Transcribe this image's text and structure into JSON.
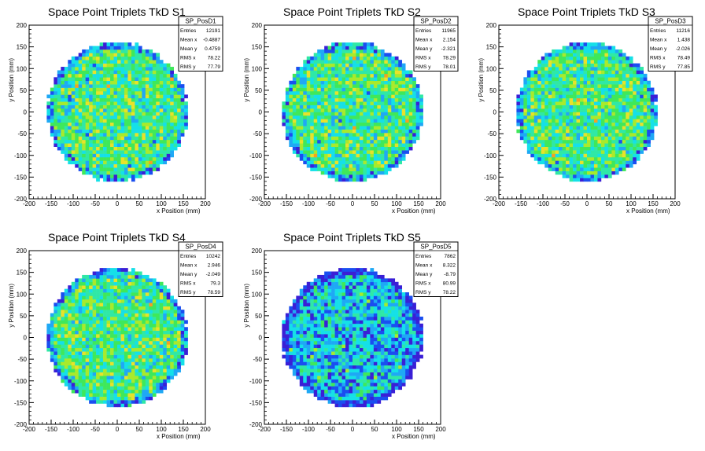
{
  "chart_data": [
    {
      "type": "heatmap",
      "title": "Space Point Triplets TkD S1",
      "xlabel": "x Position (mm)",
      "ylabel": "y Position (mm)",
      "xlim": [
        -200,
        200
      ],
      "ylim": [
        -200,
        200
      ],
      "xticks": [
        "-200",
        "-150",
        "-100",
        "-50",
        "0",
        "50",
        "100",
        "150",
        "200"
      ],
      "yticks": [
        "-200",
        "-150",
        "-100",
        "-50",
        "0",
        "50",
        "100",
        "150",
        "200"
      ],
      "distribution": {
        "shape": "disk",
        "radius_mm": 160,
        "bin_mm": 8
      },
      "seed": 11,
      "stats": {
        "name": "SP_PosD1",
        "rows": [
          {
            "label": "Entries",
            "value": "12191"
          },
          {
            "label": "Mean x",
            "value": "-0.4887"
          },
          {
            "label": "Mean y",
            "value": "0.4759"
          },
          {
            "label": "RMS x",
            "value": "78.22"
          },
          {
            "label": "RMS y",
            "value": "77.79"
          }
        ]
      }
    },
    {
      "type": "heatmap",
      "title": "Space Point Triplets TkD S2",
      "xlabel": "x Position (mm)",
      "ylabel": "y Position (mm)",
      "xlim": [
        -200,
        200
      ],
      "ylim": [
        -200,
        200
      ],
      "xticks": [
        "-200",
        "-150",
        "-100",
        "-50",
        "0",
        "50",
        "100",
        "150",
        "200"
      ],
      "yticks": [
        "-200",
        "-150",
        "-100",
        "-50",
        "0",
        "50",
        "100",
        "150",
        "200"
      ],
      "distribution": {
        "shape": "disk",
        "radius_mm": 160,
        "bin_mm": 8
      },
      "seed": 23,
      "stats": {
        "name": "SP_PosD2",
        "rows": [
          {
            "label": "Entries",
            "value": "11965"
          },
          {
            "label": "Mean x",
            "value": "2.154"
          },
          {
            "label": "Mean y",
            "value": "-2.321"
          },
          {
            "label": "RMS x",
            "value": "78.29"
          },
          {
            "label": "RMS y",
            "value": "78.01"
          }
        ]
      }
    },
    {
      "type": "heatmap",
      "title": "Space Point Triplets TkD S3",
      "xlabel": "x Position (mm)",
      "ylabel": "y Position (mm)",
      "xlim": [
        -200,
        200
      ],
      "ylim": [
        -200,
        200
      ],
      "xticks": [
        "-200",
        "-150",
        "-100",
        "-50",
        "0",
        "50",
        "100",
        "150",
        "200"
      ],
      "yticks": [
        "-200",
        "-150",
        "-100",
        "-50",
        "0",
        "50",
        "100",
        "150",
        "200"
      ],
      "distribution": {
        "shape": "disk",
        "radius_mm": 160,
        "bin_mm": 8
      },
      "seed": 37,
      "stats": {
        "name": "SP_PosD3",
        "rows": [
          {
            "label": "Entries",
            "value": "11216"
          },
          {
            "label": "Mean x",
            "value": "1.438"
          },
          {
            "label": "Mean y",
            "value": "-2.026"
          },
          {
            "label": "RMS x",
            "value": "78.49"
          },
          {
            "label": "RMS y",
            "value": "77.85"
          }
        ]
      }
    },
    {
      "type": "heatmap",
      "title": "Space Point Triplets TkD S4",
      "xlabel": "x Position (mm)",
      "ylabel": "y Position (mm)",
      "xlim": [
        -200,
        200
      ],
      "ylim": [
        -200,
        200
      ],
      "xticks": [
        "-200",
        "-150",
        "-100",
        "-50",
        "0",
        "50",
        "100",
        "150",
        "200"
      ],
      "yticks": [
        "-200",
        "-150",
        "-100",
        "-50",
        "0",
        "50",
        "100",
        "150",
        "200"
      ],
      "distribution": {
        "shape": "disk",
        "radius_mm": 160,
        "bin_mm": 8
      },
      "seed": 41,
      "stats": {
        "name": "SP_PosD4",
        "rows": [
          {
            "label": "Entries",
            "value": "10242"
          },
          {
            "label": "Mean x",
            "value": "2.946"
          },
          {
            "label": "Mean y",
            "value": "-2.049"
          },
          {
            "label": "RMS x",
            "value": "79.3"
          },
          {
            "label": "RMS y",
            "value": "78.59"
          }
        ]
      }
    },
    {
      "type": "heatmap",
      "title": "Space Point Triplets TkD S5",
      "xlabel": "x Position (mm)",
      "ylabel": "y Position (mm)",
      "xlim": [
        -200,
        200
      ],
      "ylim": [
        -200,
        200
      ],
      "xticks": [
        "-200",
        "-150",
        "-100",
        "-50",
        "0",
        "50",
        "100",
        "150",
        "200"
      ],
      "yticks": [
        "-200",
        "-150",
        "-100",
        "-50",
        "0",
        "50",
        "100",
        "150",
        "200"
      ],
      "distribution": {
        "shape": "disk",
        "radius_mm": 160,
        "bin_mm": 8
      },
      "seed": 53,
      "stats": {
        "name": "SP_PosD5",
        "rows": [
          {
            "label": "Entries",
            "value": "7862"
          },
          {
            "label": "Mean x",
            "value": "8.322"
          },
          {
            "label": "Mean y",
            "value": "-8.79"
          },
          {
            "label": "RMS x",
            "value": "80.99"
          },
          {
            "label": "RMS y",
            "value": "78.22"
          }
        ]
      }
    }
  ],
  "colors": {
    "palette": [
      "#3a1fd6",
      "#1a4ef0",
      "#1fa8f5",
      "#15e0e8",
      "#2fe8a6",
      "#3fe85a",
      "#a8ea2c",
      "#e8e22a",
      "#f5a020",
      "#e83a16"
    ],
    "axis": "#000000",
    "background": "#ffffff"
  }
}
